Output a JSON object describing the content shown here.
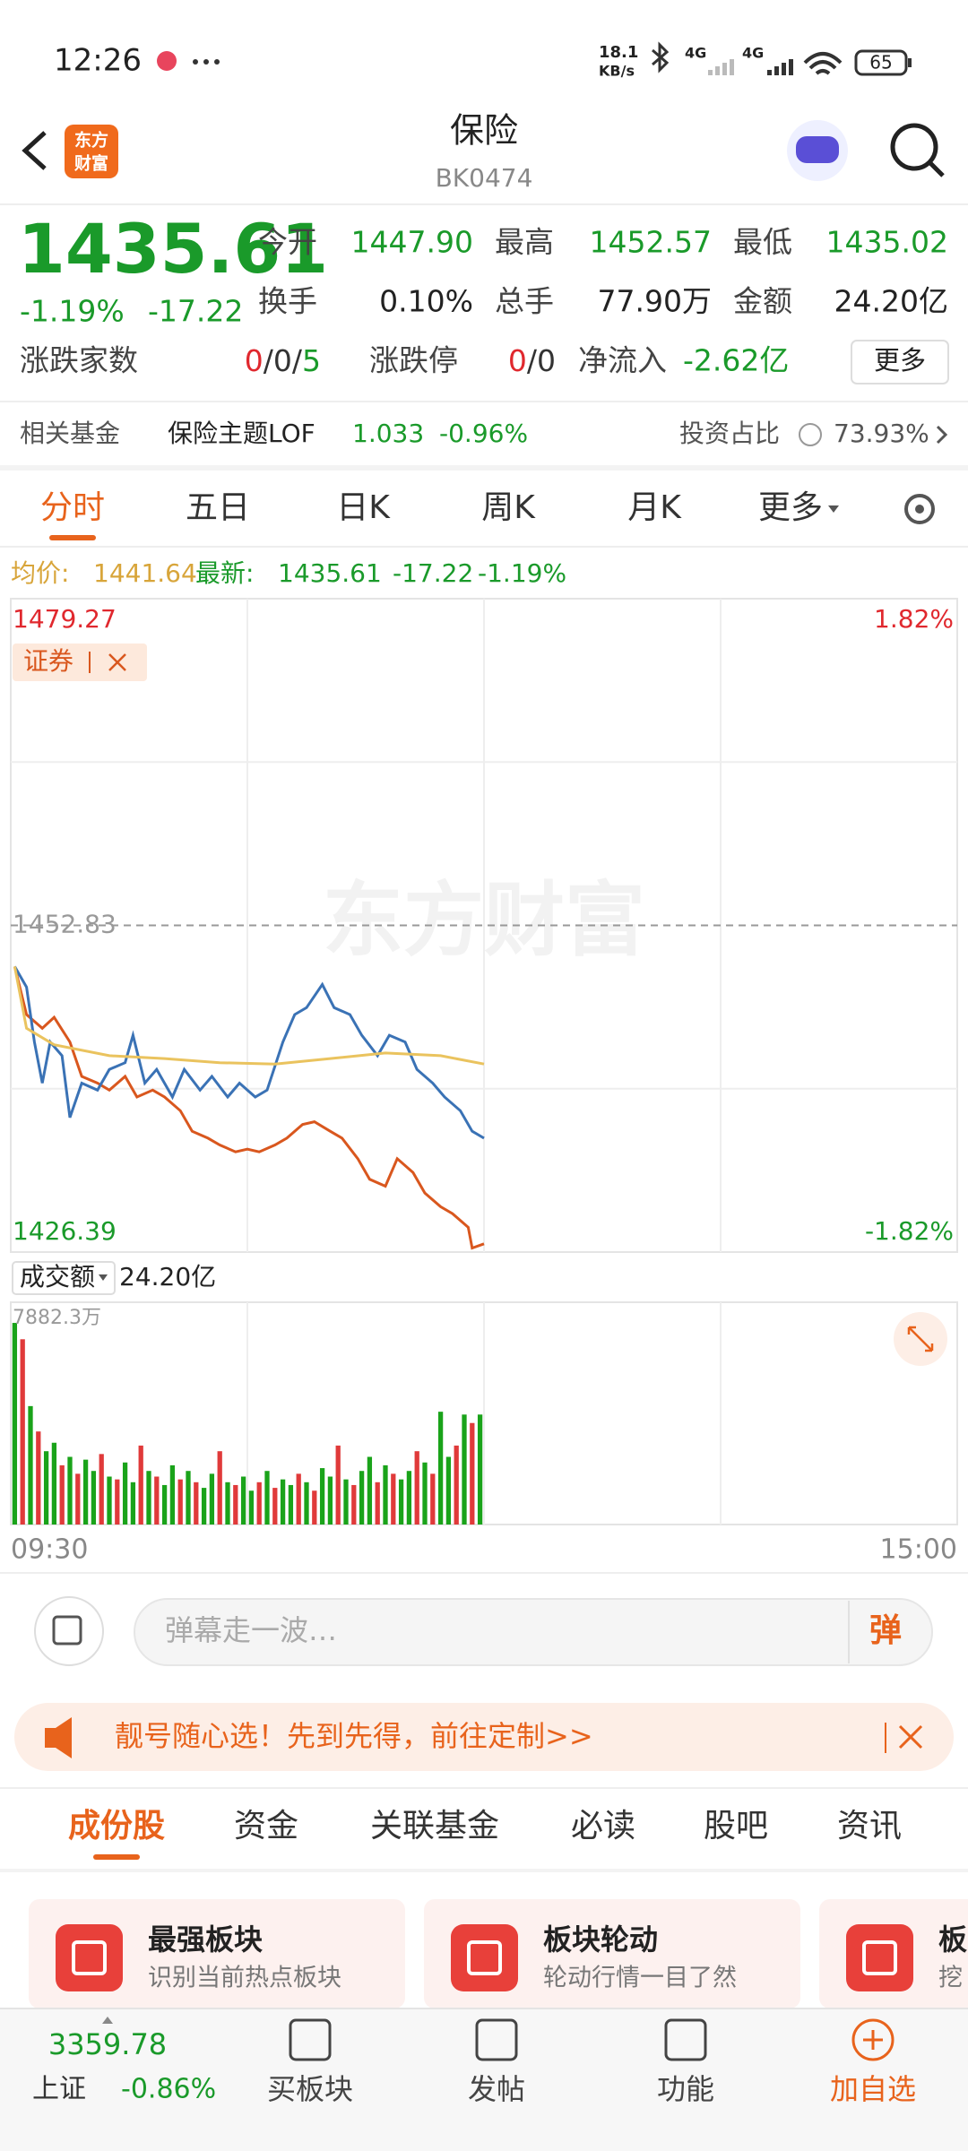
{
  "status_bar": {
    "time": "12:26",
    "net_speed": [
      "18.1",
      "KB/s"
    ],
    "network": [
      "4G",
      "4G"
    ],
    "battery": "65"
  },
  "header": {
    "logo": [
      "东方",
      "财富"
    ],
    "title": "保险",
    "code": "BK0474"
  },
  "quote": {
    "price": "1435.61",
    "change_pct": "-1.19%",
    "change": "-17.22",
    "fields": [
      {
        "label": "今开",
        "value": "1447.90"
      },
      {
        "label": "最高",
        "value": "1452.57"
      },
      {
        "label": "最低",
        "value": "1435.02"
      },
      {
        "label": "换手",
        "value": "0.10%"
      },
      {
        "label": "总手",
        "value": "77.90万"
      },
      {
        "label": "金额",
        "value": "24.20亿"
      }
    ],
    "breadth": {
      "label": "涨跌家数",
      "parts": [
        "0",
        "/0/",
        "5"
      ]
    },
    "limit": {
      "label": "涨跌停",
      "parts": [
        "0",
        "/0"
      ]
    },
    "net_inflow": {
      "label": "净流入",
      "value": "-2.62亿"
    },
    "more": "更多"
  },
  "fund": {
    "label": "相关基金",
    "name": "保险主题LOF",
    "price": "1.033",
    "change_pct": "-0.96%",
    "ratio_label": "投资占比",
    "ratio": "73.93%"
  },
  "tabs": {
    "items": [
      "分时",
      "五日",
      "日K",
      "周K",
      "月K",
      "更多"
    ],
    "active": 0
  },
  "info": {
    "avg_label": "均价:",
    "avg": "1441.64",
    "latest_label": "最新:",
    "latest": "1435.61",
    "change": "-17.22",
    "change_pct": "-1.19%"
  },
  "chart_data": [
    {
      "type": "line",
      "watermark": "东方财富",
      "xlim": [
        0,
        240
      ],
      "ylim": [
        1426.39,
        1479.27
      ],
      "yticks": [
        1426.39,
        1452.83,
        1479.27
      ],
      "y2lim": [
        -1.82,
        1.82
      ],
      "y2ticks": [
        {
          "value": -1.82,
          "label": "-1.82%"
        },
        {
          "value": 1.82,
          "label": "1.82%"
        }
      ],
      "series": [
        {
          "name": "证券",
          "color": "#d9571e",
          "x": [
            1,
            4,
            8,
            11,
            15,
            18,
            22,
            25,
            29,
            32,
            36,
            39,
            43,
            46,
            50,
            53,
            57,
            60,
            63,
            67,
            70,
            74,
            77,
            81,
            84,
            88,
            91,
            95,
            98,
            102,
            105,
            109,
            112,
            116,
            117,
            120
          ],
          "values": [
            1449.5,
            1445.61,
            1444.5,
            1445.39,
            1443.39,
            1440.61,
            1440.06,
            1439.5,
            1440.61,
            1438.94,
            1439.5,
            1438.94,
            1437.83,
            1436.17,
            1435.61,
            1435.06,
            1434.5,
            1434.72,
            1434.5,
            1435.06,
            1435.61,
            1436.72,
            1436.94,
            1436.17,
            1435.61,
            1433.95,
            1432.28,
            1431.72,
            1433.95,
            1432.83,
            1431.17,
            1430.06,
            1429.5,
            1428.39,
            1426.72,
            1427.06
          ]
        },
        {
          "color": "#3a72b5",
          "x": [
            1,
            4,
            6,
            8,
            10,
            13,
            15,
            18,
            22,
            25,
            29,
            31,
            34,
            37,
            41,
            44,
            48,
            51,
            55,
            58,
            62,
            65,
            69,
            72,
            75,
            79,
            82,
            86,
            89,
            93,
            96,
            100,
            103,
            107,
            110,
            114,
            117,
            120
          ],
          "values": [
            1449.5,
            1447.83,
            1443.39,
            1440.06,
            1443.39,
            1442.28,
            1437.28,
            1440.06,
            1439.5,
            1441.17,
            1441.72,
            1443.94,
            1440.06,
            1441.17,
            1438.94,
            1441.17,
            1439.5,
            1440.61,
            1438.94,
            1440.06,
            1438.94,
            1439.5,
            1443.39,
            1445.61,
            1446.17,
            1448.05,
            1446.17,
            1445.61,
            1443.94,
            1442.28,
            1443.94,
            1443.39,
            1441.17,
            1440.06,
            1438.94,
            1437.83,
            1436.17,
            1435.61
          ]
        },
        {
          "color": "#eac35e",
          "x": [
            1,
            4,
            11,
            25,
            39,
            53,
            67,
            81,
            95,
            109,
            120
          ],
          "values": [
            1449.5,
            1444.5,
            1443.17,
            1442.28,
            1442.05,
            1441.72,
            1441.61,
            1442.05,
            1442.5,
            1442.28,
            1441.61
          ]
        }
      ]
    },
    {
      "type": "bar",
      "title": "成交额",
      "total": "24.20亿",
      "xlim": [
        0,
        240
      ],
      "xticks": [
        {
          "value": 0,
          "label": "09:30"
        },
        {
          "value": 240,
          "label": "15:00"
        }
      ],
      "ylim": [
        0,
        7882.3
      ],
      "yticks": [
        {
          "value": 7882.3,
          "label": "7882.3万"
        }
      ],
      "x": [
        1,
        3,
        5,
        7,
        9,
        11,
        13,
        15,
        17,
        19,
        21,
        23,
        25,
        27,
        29,
        31,
        33,
        35,
        37,
        39,
        41,
        43,
        45,
        47,
        49,
        51,
        53,
        55,
        57,
        59,
        61,
        63,
        65,
        67,
        69,
        71,
        73,
        75,
        77,
        79,
        81,
        83,
        85,
        87,
        89,
        91,
        93,
        95,
        97,
        99,
        101,
        103,
        105,
        107,
        109,
        111,
        113,
        115,
        117,
        119
      ],
      "values": [
        7150,
        6570,
        4200,
        3300,
        2600,
        2900,
        2100,
        2400,
        1800,
        2300,
        1900,
        2500,
        1700,
        1600,
        2200,
        1500,
        2800,
        1900,
        1700,
        1400,
        2100,
        1600,
        1900,
        1500,
        1300,
        1800,
        2600,
        1500,
        1400,
        1700,
        1200,
        1500,
        1900,
        1300,
        1600,
        1400,
        1800,
        1500,
        1200,
        2000,
        1700,
        2800,
        1600,
        1400,
        1900,
        2400,
        1500,
        2100,
        1800,
        1600,
        1900,
        2600,
        2200,
        1800,
        4000,
        2400,
        2800,
        3900,
        3600,
        3900
      ],
      "colors": [
        "#1aa31a",
        "#e03a3a",
        "#1aa31a",
        "#e03a3a",
        "#1aa31a",
        "#1aa31a",
        "#e03a3a",
        "#1aa31a",
        "#e03a3a",
        "#1aa31a",
        "#1aa31a",
        "#e03a3a",
        "#1aa31a",
        "#e03a3a",
        "#1aa31a",
        "#1aa31a",
        "#e03a3a",
        "#1aa31a",
        "#e03a3a",
        "#1aa31a",
        "#1aa31a",
        "#e03a3a",
        "#1aa31a",
        "#e03a3a",
        "#1aa31a",
        "#1aa31a",
        "#e03a3a",
        "#1aa31a",
        "#e03a3a",
        "#1aa31a",
        "#1aa31a",
        "#e03a3a",
        "#1aa31a",
        "#e03a3a",
        "#1aa31a",
        "#1aa31a",
        "#e03a3a",
        "#1aa31a",
        "#e03a3a",
        "#1aa31a",
        "#1aa31a",
        "#e03a3a",
        "#1aa31a",
        "#e03a3a",
        "#1aa31a",
        "#1aa31a",
        "#e03a3a",
        "#1aa31a",
        "#e03a3a",
        "#1aa31a",
        "#1aa31a",
        "#e03a3a",
        "#1aa31a",
        "#e03a3a",
        "#1aa31a",
        "#1aa31a",
        "#e03a3a",
        "#1aa31a",
        "#e03a3a",
        "#1aa31a"
      ]
    }
  ],
  "comment": {
    "placeholder": "弹幕走一波…",
    "button": "弹"
  },
  "banner": {
    "text": "靓号随心选！先到先得，前往定制>>"
  },
  "section_tabs": {
    "items": [
      "成份股",
      "资金",
      "关联基金",
      "必读",
      "股吧",
      "资讯"
    ],
    "active": 0
  },
  "cards": [
    {
      "title": "最强板块",
      "subtitle": "识别当前热点板块"
    },
    {
      "title": "板块轮动",
      "subtitle": "轮动行情一目了然"
    },
    {
      "title": "板",
      "subtitle": "挖"
    }
  ],
  "bottom_bar": {
    "index": {
      "value": "3359.78",
      "name": "上证",
      "change_pct": "-0.86%"
    },
    "nav": [
      "买板块",
      "发帖",
      "功能",
      "加自选"
    ]
  }
}
